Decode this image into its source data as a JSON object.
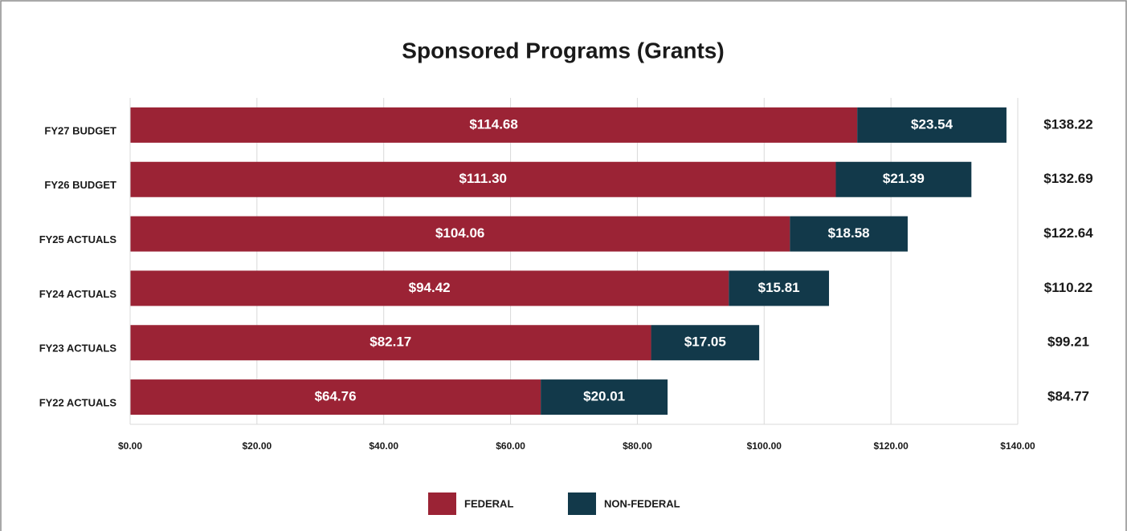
{
  "chart_data": {
    "type": "stacked-bar-horizontal",
    "title": "Sponsored Programs (Grants)",
    "categories": [
      "FY27 BUDGET",
      "FY26 BUDGET",
      "FY25 ACTUALS",
      "FY24 ACTUALS",
      "FY23 ACTUALS",
      "FY22 ACTUALS"
    ],
    "series": [
      {
        "name": "FEDERAL",
        "color": "#9b2335",
        "values": [
          114.68,
          111.3,
          104.06,
          94.42,
          82.17,
          64.76
        ],
        "value_labels": [
          "$114.68",
          "$111.30",
          "$104.06",
          "$94.42",
          "$82.17",
          "$64.76"
        ]
      },
      {
        "name": "NON-FEDERAL",
        "color": "#12394a",
        "values": [
          23.54,
          21.39,
          18.58,
          15.81,
          17.05,
          20.01
        ],
        "value_labels": [
          "$23.54",
          "$21.39",
          "$18.58",
          "$15.81",
          "$17.05",
          "$20.01"
        ]
      }
    ],
    "total_labels": [
      "$138.22",
      "$132.69",
      "$122.64",
      "$110.22",
      "$99.21",
      "$84.77"
    ],
    "xlim": [
      0,
      140
    ],
    "xticks": [
      {
        "value": 0,
        "label": "$0.00"
      },
      {
        "value": 20,
        "label": "$20.00"
      },
      {
        "value": 40,
        "label": "$40.00"
      },
      {
        "value": 60,
        "label": "$60.00"
      },
      {
        "value": 80,
        "label": "$80.00"
      },
      {
        "value": 100,
        "label": "$100.00"
      },
      {
        "value": 120,
        "label": "$120.00"
      },
      {
        "value": 140,
        "label": "$140.00"
      }
    ],
    "grid": true,
    "legend": "bottom"
  }
}
